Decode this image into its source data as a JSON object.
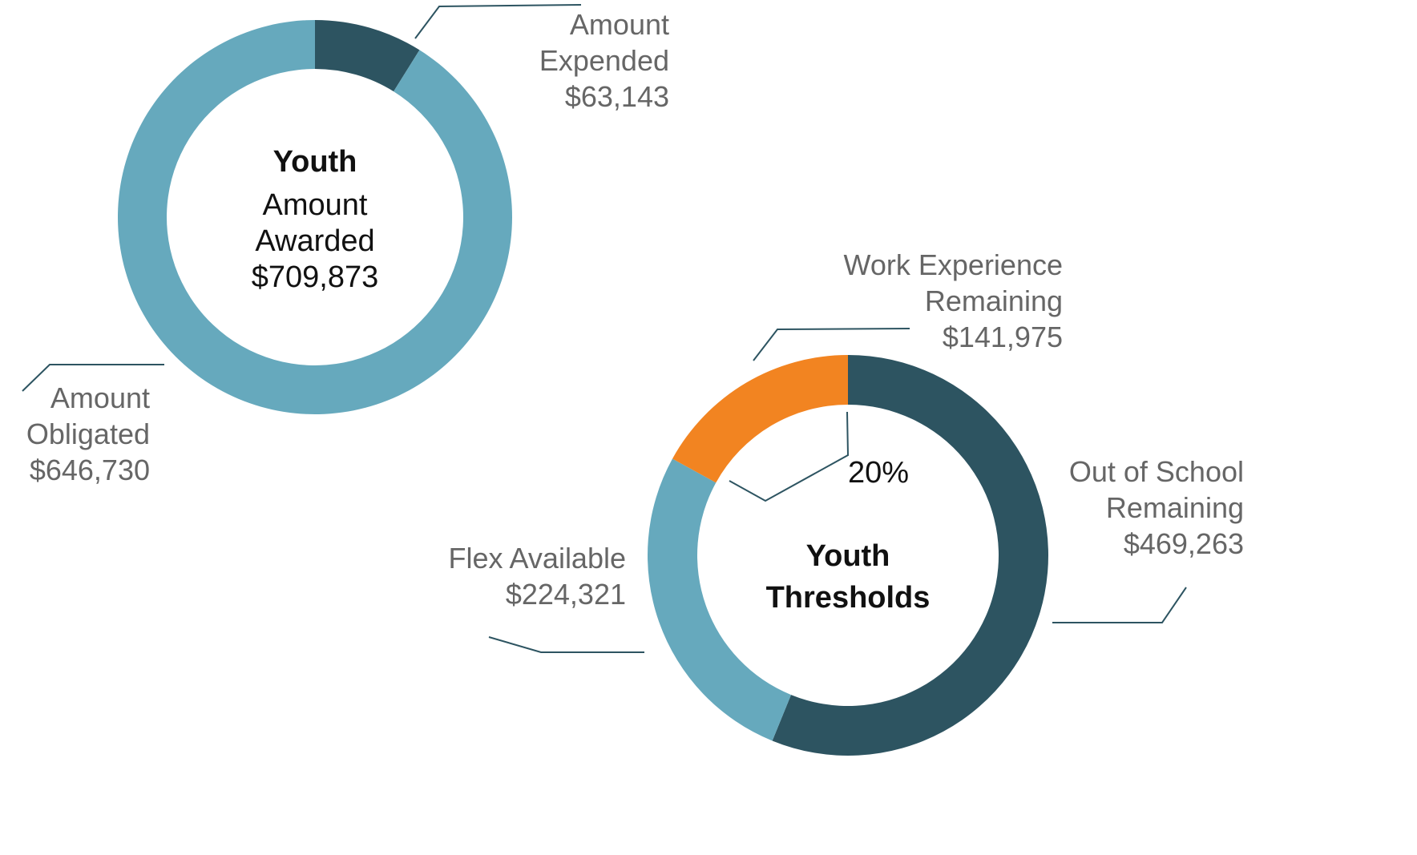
{
  "chart_data": [
    {
      "type": "pie",
      "title": "Youth",
      "subtitle": "Amount Awarded",
      "total": 709873,
      "total_label": "$709,873",
      "labels": [
        "Amount Expended",
        "Amount Obligated"
      ],
      "values": [
        63143,
        646730
      ],
      "value_labels": [
        "$63,143",
        "$646,730"
      ],
      "colors": [
        "#2d5461",
        "#66a9bd"
      ]
    },
    {
      "type": "pie",
      "title": "Youth Thresholds",
      "annotation": "20%",
      "labels": [
        "Out of School Remaining",
        "Flex Available",
        "Work Experience Remaining"
      ],
      "values": [
        469263,
        224321,
        141975
      ],
      "value_labels": [
        "$469,263",
        "$224,321",
        "$141,975"
      ],
      "colors": [
        "#2d5461",
        "#66a9bd",
        "#f28421"
      ]
    }
  ]
}
